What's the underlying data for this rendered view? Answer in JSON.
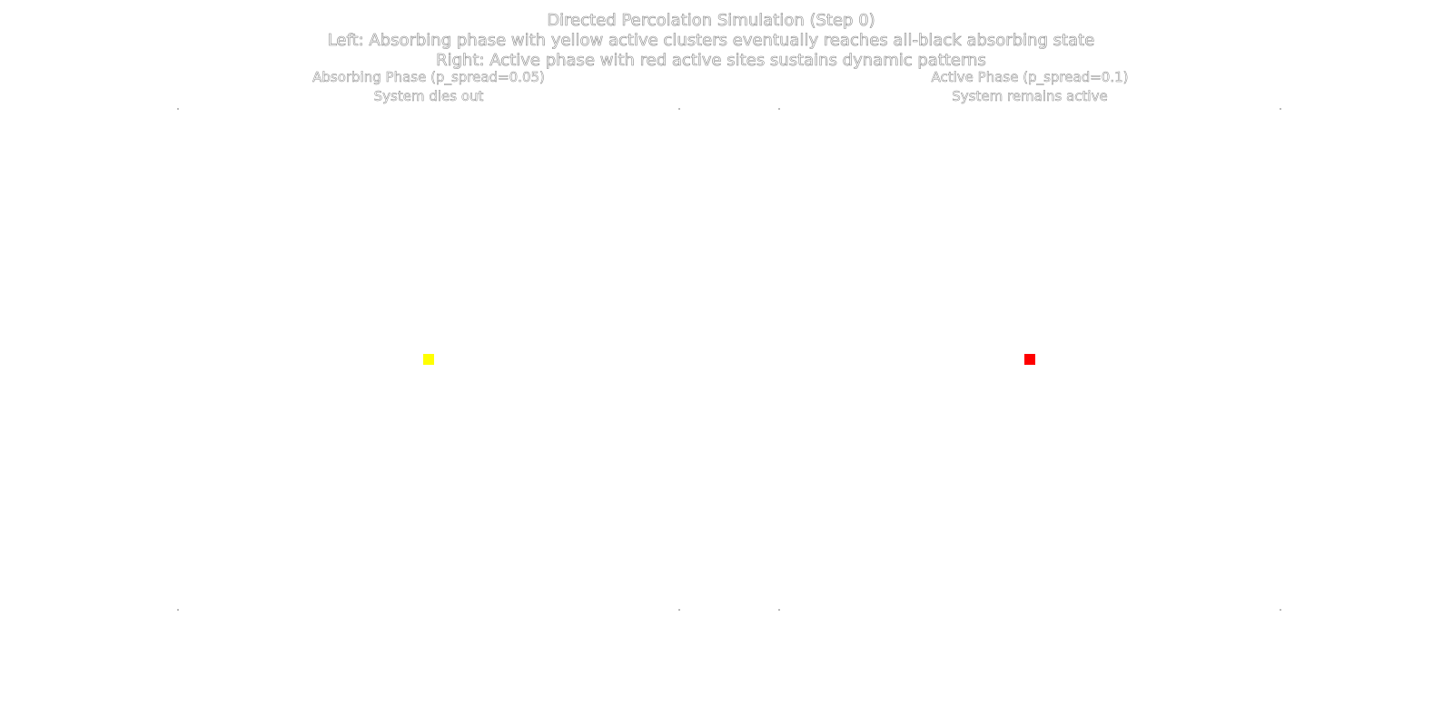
{
  "figure": {
    "title_lines": [
      "Directed Percolation Simulation (Step 0)",
      "Left: Absorbing phase with yellow active clusters eventually reaches all-black absorbing state",
      "Right: Active phase with red active sites sustains dynamic patterns"
    ]
  },
  "panels": [
    {
      "title_line1": "Absorbing Phase (p_spread=0.05)",
      "title_line2": "System dies out",
      "active_color": "#ffff00",
      "background_color": "#ffffff",
      "active_cells": [
        [
          0.5,
          0.5
        ]
      ]
    },
    {
      "title_line1": "Active Phase (p_spread=0.1)",
      "title_line2": "System remains active",
      "active_color": "#ff0000",
      "background_color": "#ffffff",
      "active_cells": [
        [
          0.5,
          0.5
        ]
      ]
    }
  ]
}
